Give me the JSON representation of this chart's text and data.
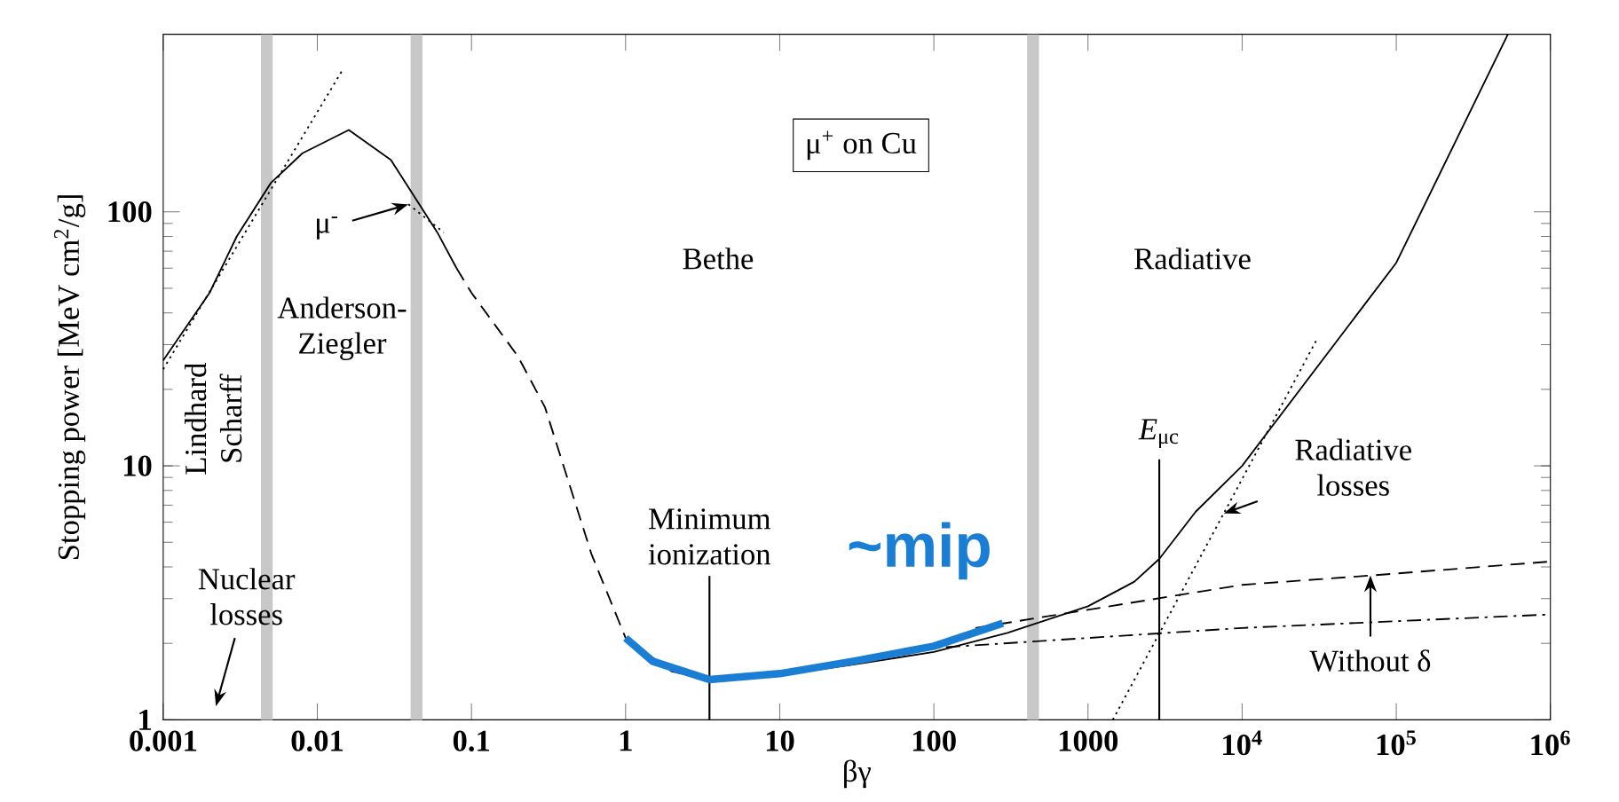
{
  "chart_data": {
    "type": "line",
    "xlabel": "βγ",
    "ylabel": "Stopping power [MeV cm$^{2}$/g]",
    "log": "xy",
    "xlim": [
      0.001,
      1000000
    ],
    "ylim": [
      1,
      500
    ],
    "xticks": [
      0.001,
      0.01,
      0.1,
      1,
      10,
      100,
      1000,
      {
        "value": 10000,
        "label": "10$^{4}$"
      },
      {
        "value": 100000,
        "label": "10$^{5}$"
      },
      {
        "value": 1000000,
        "label": "10$^{6}$"
      }
    ],
    "yticks": [
      1,
      10,
      100
    ],
    "series": [
      {
        "color": "#000000",
        "line_style": "solid",
        "x": [
          0.001,
          0.002,
          0.003,
          0.005,
          0.008,
          0.016,
          0.03,
          0.06,
          0.08
        ],
        "values": [
          26,
          48,
          80,
          130,
          170,
          210,
          160,
          83,
          60
        ]
      },
      {
        "color": "#000000",
        "line_style": "dashed",
        "x": [
          0.08,
          0.1,
          0.2,
          0.3,
          0.6,
          1
        ],
        "values": [
          60,
          48,
          27,
          17,
          4.5,
          2.1
        ]
      },
      {
        "color": "#000000",
        "line_style": "solid",
        "x": [
          1,
          2,
          3.5,
          10,
          30,
          100,
          300,
          1000,
          2000,
          2900,
          5000,
          10000,
          100000,
          530000
        ],
        "values": [
          2.1,
          1.55,
          1.44,
          1.5,
          1.65,
          1.85,
          2.2,
          2.8,
          3.5,
          4.3,
          6.6,
          10,
          63,
          500
        ]
      },
      {
        "color": "#000000",
        "line_style": "dotted",
        "x": [
          0.001,
          0.0145
        ],
        "values": [
          24,
          360
        ]
      },
      {
        "color": "#000000",
        "line_style": "dotted",
        "x": [
          0.039,
          0.066
        ],
        "values": [
          107,
          83
        ]
      },
      {
        "color": "#000000",
        "line_style": "dotted",
        "x": [
          1450,
          7600,
          31000
        ],
        "values": [
          1,
          6.5,
          32
        ]
      },
      {
        "color": "#000000",
        "line_style": "dashed",
        "x": [
          186,
          10000,
          68000,
          1000000
        ],
        "values": [
          2.3,
          3.4,
          3.7,
          4.2
        ]
      },
      {
        "color": "#000000",
        "line_style": "dashdot",
        "x": [
          78,
          10000,
          1000000
        ],
        "values": [
          1.9,
          2.3,
          2.6
        ]
      },
      {
        "name": "~mip",
        "color": "#1a7fd4",
        "line_style": "solid",
        "x": [
          1,
          1.5,
          3.5,
          10,
          30,
          100,
          280
        ],
        "values": [
          2.1,
          1.7,
          1.44,
          1.52,
          1.7,
          1.95,
          2.4
        ]
      }
    ],
    "ref_lines": [
      {
        "axis": "x",
        "value": 0.0047,
        "color": "#c8c8c8"
      },
      {
        "axis": "x",
        "value": 0.044,
        "color": "#c8c8c8"
      },
      {
        "axis": "x",
        "value": 440,
        "color": "#c8c8c8"
      },
      {
        "axis": "x",
        "value": 3.5,
        "label": "Minimum ionization",
        "color": "#000000"
      },
      {
        "axis": "x",
        "value": 2900,
        "label": "*E*$_{μc}$",
        "color": "#000000"
      }
    ],
    "annotations": [
      "μ$^{+}$ on Cu",
      "Bethe",
      "Radiative",
      "Anderson-Ziegler",
      "Lindhard Scharff",
      "Nuclear losses",
      {
        "text": "μ$^{-}$",
        "x": 0.039,
        "y": 107
      },
      {
        "text": "Radiative losses",
        "x": 7600,
        "y": 6.5
      },
      {
        "text": "Without δ",
        "x": 68000,
        "y": 3.7
      }
    ]
  }
}
